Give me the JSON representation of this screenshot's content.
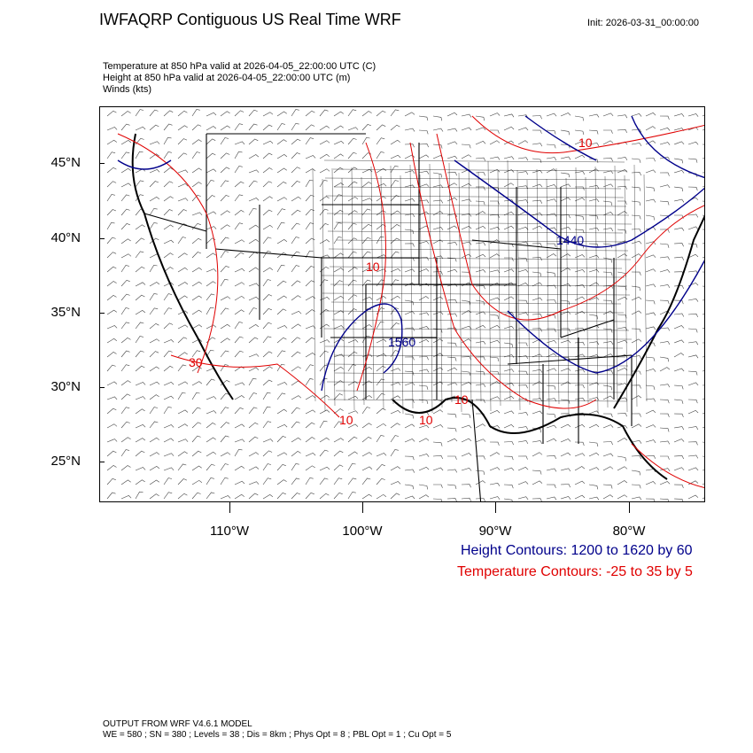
{
  "header": {
    "title": "IWFAQRP Contiguous US Real Time WRF",
    "init": "Init: 2026-03-31_00:00:00"
  },
  "description": {
    "line1": "Temperature at 850 hPa valid at 2026-04-05_22:00:00 UTC   (C)",
    "line2": "Height at 850 hPa valid at 2026-04-05_22:00:00 UTC   (m)",
    "line3": "Winds   (kts)"
  },
  "map": {
    "lat_labels": [
      "45°N",
      "40°N",
      "35°N",
      "30°N",
      "25°N"
    ],
    "lon_labels": [
      "110°W",
      "100°W",
      "90°W",
      "80°W"
    ],
    "contour_labels": {
      "height": [
        "1560",
        "1440"
      ],
      "temperature": [
        "10",
        "10",
        "10",
        "30",
        "10",
        "10"
      ]
    },
    "colors": {
      "height": "#00008b",
      "temperature": "#e00000",
      "boundaries": "#000000"
    }
  },
  "legend": {
    "height": "Height Contours: 1200 to 1620 by 60",
    "temperature": "Temperature Contours: -25 to 35 by 5"
  },
  "footer": {
    "line1": "OUTPUT FROM WRF V4.6.1 MODEL",
    "line2": "WE = 580 ; SN = 380 ; Levels = 38 ; Dis = 8km ; Phys Opt = 8 ; PBL Opt = 1 ; Cu Opt = 5"
  }
}
